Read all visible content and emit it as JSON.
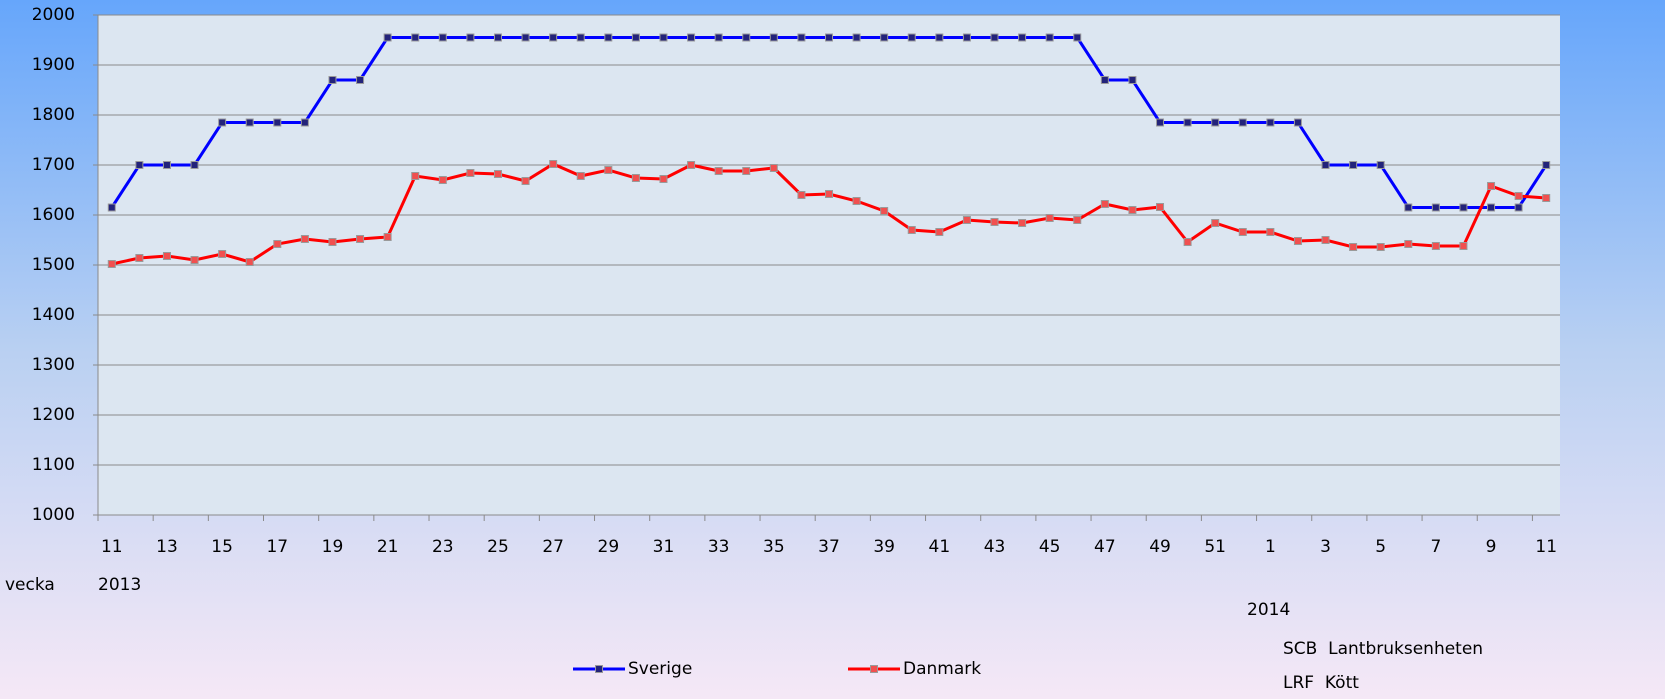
{
  "chart_data": {
    "type": "line",
    "categories": [
      "11",
      null,
      "13",
      null,
      "15",
      null,
      "17",
      null,
      "19",
      null,
      "21",
      null,
      "23",
      null,
      "25",
      null,
      "27",
      null,
      "29",
      null,
      "31",
      null,
      "33",
      null,
      "35",
      null,
      "37",
      null,
      "39",
      null,
      "41",
      null,
      "43",
      null,
      "45",
      null,
      "47",
      null,
      "49",
      null,
      "51",
      null,
      "1",
      null,
      "3",
      null,
      "5",
      null,
      "7",
      null,
      "9",
      null,
      "11"
    ],
    "series": [
      {
        "name": "Sverige",
        "color": "#0000ff",
        "values": [
          1615,
          1700,
          1700,
          1700,
          1785,
          1785,
          1785,
          1785,
          1870,
          1870,
          1955,
          1955,
          1955,
          1955,
          1955,
          1955,
          1955,
          1955,
          1955,
          1955,
          1955,
          1955,
          1955,
          1955,
          1955,
          1955,
          1955,
          1955,
          1955,
          1955,
          1955,
          1955,
          1955,
          1955,
          1955,
          1955,
          1870,
          1870,
          1785,
          1785,
          1785,
          1785,
          1785,
          1785,
          1700,
          1700,
          1700,
          1615,
          1615,
          1615,
          1615,
          1615,
          1700
        ]
      },
      {
        "name": "Danmark",
        "color": "#ff0000",
        "values": [
          1502,
          1514,
          1518,
          1510,
          1522,
          1506,
          1542,
          1552,
          1546,
          1552,
          1556,
          1678,
          1670,
          1684,
          1682,
          1668,
          1702,
          1678,
          1690,
          1674,
          1672,
          1700,
          1688,
          1688,
          1694,
          1640,
          1642,
          1628,
          1608,
          1570,
          1566,
          1590,
          1586,
          1584,
          1594,
          1590,
          1622,
          1610,
          1616,
          1546,
          1584,
          1566,
          1566,
          1548,
          1550,
          1536,
          1536,
          1542,
          1538,
          1538,
          1658,
          1638,
          1634
        ]
      }
    ],
    "ylim": [
      1000,
      2000
    ],
    "yticks": [
      1000,
      1100,
      1200,
      1300,
      1400,
      1500,
      1600,
      1700,
      1800,
      1900,
      2000
    ],
    "grid": true,
    "legend": "bottom",
    "xlabel": "vecka",
    "years": [
      "2013",
      "2014"
    ],
    "source": [
      "SCB  Lantbruksenheten",
      "LRF  Kött"
    ]
  }
}
